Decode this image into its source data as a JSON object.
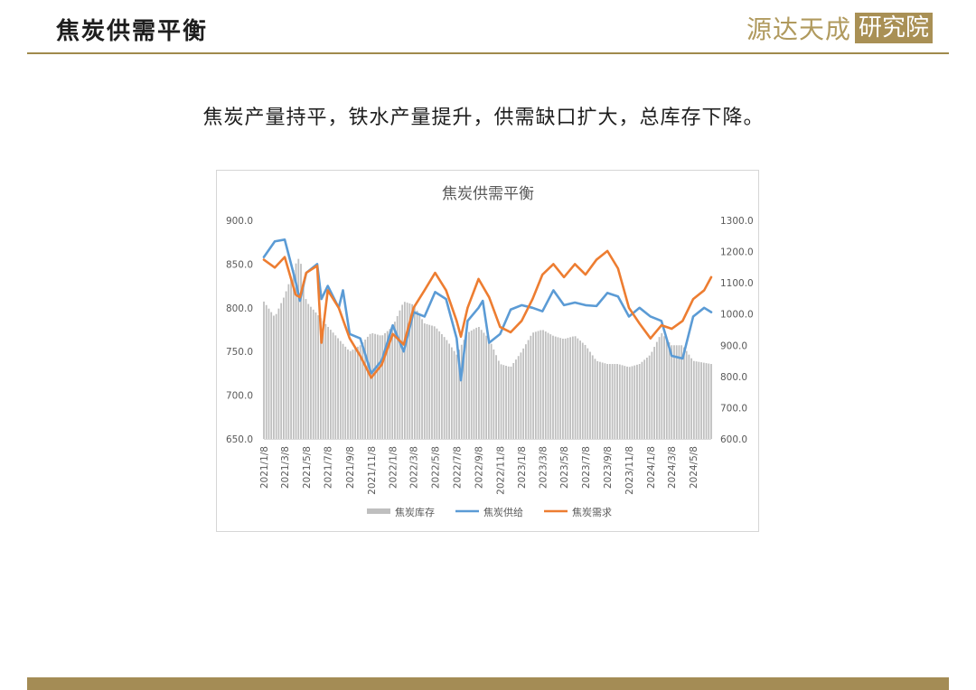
{
  "header": {
    "title": "焦炭供需平衡",
    "logo_left": "源达天成",
    "logo_right": "研究院"
  },
  "subtitle": "焦炭产量持平，铁水产量提升，供需缺口扩大，总库存下降。",
  "colors": {
    "inventory": "#bfbfbf",
    "supply": "#5b9bd5",
    "demand": "#ed7d31",
    "accent": "#a08a4c"
  },
  "chart_data": {
    "type": "bar+line",
    "title": "焦炭供需平衡",
    "x_ticks": [
      "2021/1/8",
      "2021/3/8",
      "2021/5/8",
      "2021/7/8",
      "2021/9/8",
      "2021/11/8",
      "2022/1/8",
      "2022/3/8",
      "2022/5/8",
      "2022/7/8",
      "2022/9/8",
      "2022/11/8",
      "2023/1/8",
      "2023/3/8",
      "2023/5/8",
      "2023/7/8",
      "2023/9/8",
      "2023/11/8",
      "2024/1/8",
      "2024/3/8",
      "2024/5/8"
    ],
    "x_range": [
      "2021/1/8",
      "2024/6/28"
    ],
    "left_axis": {
      "range": [
        650,
        900
      ],
      "ticks": [
        "650.0",
        "700.0",
        "750.0",
        "800.0",
        "850.0",
        "900.0"
      ]
    },
    "right_axis": {
      "range": [
        600,
        1300
      ],
      "ticks": [
        "600.0",
        "700.0",
        "800.0",
        "900.0",
        "1000.0",
        "1100.0",
        "1200.0",
        "1300.0"
      ]
    },
    "legend_position": "bottom",
    "grid": false,
    "series": [
      {
        "name": "焦炭库存",
        "type": "bar",
        "axis": "right",
        "points": [
          [
            "2021/1/8",
            1040
          ],
          [
            "2021/2/8",
            990
          ],
          [
            "2021/3/8",
            1060
          ],
          [
            "2021/4/8",
            1160
          ],
          [
            "2021/4/20",
            1185
          ],
          [
            "2021/5/8",
            1040
          ],
          [
            "2021/6/8",
            1000
          ],
          [
            "2021/7/8",
            960
          ],
          [
            "2021/8/8",
            920
          ],
          [
            "2021/9/8",
            880
          ],
          [
            "2021/10/8",
            900
          ],
          [
            "2021/11/8",
            940
          ],
          [
            "2021/12/8",
            930
          ],
          [
            "2022/1/8",
            960
          ],
          [
            "2022/2/8",
            1040
          ],
          [
            "2022/3/8",
            1030
          ],
          [
            "2022/4/8",
            970
          ],
          [
            "2022/5/8",
            960
          ],
          [
            "2022/6/8",
            920
          ],
          [
            "2022/7/8",
            870
          ],
          [
            "2022/8/8",
            940
          ],
          [
            "2022/9/8",
            960
          ],
          [
            "2022/10/8",
            920
          ],
          [
            "2022/11/8",
            840
          ],
          [
            "2022/12/8",
            830
          ],
          [
            "2023/1/8",
            880
          ],
          [
            "2023/2/8",
            940
          ],
          [
            "2023/3/8",
            950
          ],
          [
            "2023/4/8",
            930
          ],
          [
            "2023/5/8",
            920
          ],
          [
            "2023/6/8",
            930
          ],
          [
            "2023/7/8",
            900
          ],
          [
            "2023/8/8",
            850
          ],
          [
            "2023/9/8",
            840
          ],
          [
            "2023/10/8",
            840
          ],
          [
            "2023/11/8",
            830
          ],
          [
            "2023/12/8",
            840
          ],
          [
            "2024/1/8",
            870
          ],
          [
            "2024/2/8",
            940
          ],
          [
            "2024/3/8",
            900
          ],
          [
            "2024/4/8",
            900
          ],
          [
            "2024/5/8",
            850
          ],
          [
            "2024/6/28",
            840
          ]
        ]
      },
      {
        "name": "焦炭供给",
        "type": "line",
        "axis": "left",
        "points": [
          [
            "2021/1/8",
            858
          ],
          [
            "2021/2/8",
            876
          ],
          [
            "2021/3/8",
            878
          ],
          [
            "2021/4/8",
            830
          ],
          [
            "2021/4/20",
            808
          ],
          [
            "2021/5/8",
            840
          ],
          [
            "2021/6/8",
            850
          ],
          [
            "2021/6/20",
            810
          ],
          [
            "2021/7/8",
            825
          ],
          [
            "2021/8/8",
            800
          ],
          [
            "2021/8/20",
            820
          ],
          [
            "2021/9/8",
            770
          ],
          [
            "2021/10/8",
            765
          ],
          [
            "2021/11/8",
            725
          ],
          [
            "2021/12/8",
            740
          ],
          [
            "2022/1/8",
            780
          ],
          [
            "2022/2/8",
            750
          ],
          [
            "2022/3/8",
            795
          ],
          [
            "2022/4/8",
            790
          ],
          [
            "2022/5/8",
            818
          ],
          [
            "2022/6/8",
            810
          ],
          [
            "2022/7/8",
            765
          ],
          [
            "2022/7/20",
            717
          ],
          [
            "2022/8/8",
            785
          ],
          [
            "2022/9/8",
            800
          ],
          [
            "2022/9/20",
            808
          ],
          [
            "2022/10/8",
            760
          ],
          [
            "2022/11/8",
            770
          ],
          [
            "2022/12/8",
            798
          ],
          [
            "2023/1/8",
            803
          ],
          [
            "2023/2/8",
            800
          ],
          [
            "2023/3/8",
            796
          ],
          [
            "2023/4/8",
            820
          ],
          [
            "2023/5/8",
            803
          ],
          [
            "2023/6/8",
            806
          ],
          [
            "2023/7/8",
            803
          ],
          [
            "2023/8/8",
            802
          ],
          [
            "2023/9/8",
            817
          ],
          [
            "2023/10/8",
            813
          ],
          [
            "2023/11/8",
            790
          ],
          [
            "2023/12/8",
            800
          ],
          [
            "2024/1/8",
            790
          ],
          [
            "2024/2/8",
            785
          ],
          [
            "2024/3/8",
            745
          ],
          [
            "2024/4/8",
            742
          ],
          [
            "2024/5/8",
            790
          ],
          [
            "2024/6/8",
            800
          ],
          [
            "2024/6/28",
            795
          ]
        ]
      },
      {
        "name": "焦炭需求",
        "type": "line",
        "axis": "left",
        "points": [
          [
            "2021/1/8",
            855
          ],
          [
            "2021/2/8",
            846
          ],
          [
            "2021/3/8",
            858
          ],
          [
            "2021/4/8",
            815
          ],
          [
            "2021/4/20",
            812
          ],
          [
            "2021/5/8",
            840
          ],
          [
            "2021/6/8",
            848
          ],
          [
            "2021/6/20",
            760
          ],
          [
            "2021/7/8",
            820
          ],
          [
            "2021/8/8",
            800
          ],
          [
            "2021/9/8",
            765
          ],
          [
            "2021/10/8",
            745
          ],
          [
            "2021/11/8",
            720
          ],
          [
            "2021/12/8",
            735
          ],
          [
            "2022/1/8",
            770
          ],
          [
            "2022/2/8",
            758
          ],
          [
            "2022/3/8",
            800
          ],
          [
            "2022/4/8",
            820
          ],
          [
            "2022/5/8",
            840
          ],
          [
            "2022/6/8",
            820
          ],
          [
            "2022/7/8",
            785
          ],
          [
            "2022/7/20",
            767
          ],
          [
            "2022/8/8",
            800
          ],
          [
            "2022/9/8",
            833
          ],
          [
            "2022/10/8",
            812
          ],
          [
            "2022/11/8",
            778
          ],
          [
            "2022/12/8",
            772
          ],
          [
            "2023/1/8",
            785
          ],
          [
            "2023/2/8",
            810
          ],
          [
            "2023/3/8",
            838
          ],
          [
            "2023/4/8",
            850
          ],
          [
            "2023/5/8",
            835
          ],
          [
            "2023/6/8",
            850
          ],
          [
            "2023/7/8",
            838
          ],
          [
            "2023/8/8",
            855
          ],
          [
            "2023/9/8",
            865
          ],
          [
            "2023/10/8",
            845
          ],
          [
            "2023/11/8",
            800
          ],
          [
            "2023/12/8",
            782
          ],
          [
            "2024/1/8",
            765
          ],
          [
            "2024/2/8",
            780
          ],
          [
            "2024/3/8",
            776
          ],
          [
            "2024/4/8",
            785
          ],
          [
            "2024/5/8",
            810
          ],
          [
            "2024/6/8",
            820
          ],
          [
            "2024/6/28",
            835
          ]
        ]
      }
    ]
  }
}
